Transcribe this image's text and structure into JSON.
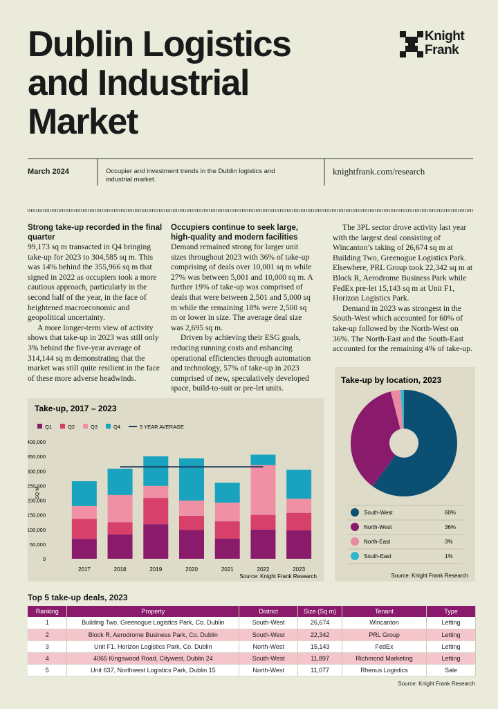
{
  "header": {
    "title_lines": [
      "Dublin Logistics",
      "and Industrial",
      "Market"
    ],
    "logo": [
      "Knight",
      "Frank"
    ],
    "date": "March 2024",
    "description": "Occupier and investment trends in the Dublin logistics and industrial market.",
    "url": "knightfrank.com/research"
  },
  "columns": [
    {
      "heading": "Strong take-up recorded in the final quarter",
      "paragraphs": [
        "99,173 sq m transacted in Q4 bringing take-up for 2023 to 304,585 sq m. This was 14% behind the 355,966 sq m that signed in 2022 as occupiers took a more cautious approach, particularly in the second half of the year, in the face of heightened macroeconomic and geopolitical uncertainty.",
        "A more longer-term view of activity shows that take-up in 2023 was still only 3% behind the five-year average of 314,144 sq m demonstrating that the market was still quite resilient in the face of these more adverse headwinds."
      ]
    },
    {
      "heading": "Occupiers continue to seek large, high-quality and modern facilities",
      "paragraphs": [
        "Demand remained strong for larger unit sizes throughout 2023 with 36% of take-up comprising of deals over 10,001 sq m while 27% was between 5,001 and 10,000 sq m. A further 19% of take-up was comprised of deals that were between 2,501 and 5,000 sq m while the remaining 18% were 2,500 sq m or lower in size. The average deal size was 2,695 sq m.",
        "Driven by achieving their ESG goals, reducing running costs and enhancing operational efficiencies through automation and technology, 57% of take-up in 2023 comprised of new, speculatively developed space, build-to-suit or pre-let units."
      ]
    },
    {
      "paragraphs": [
        "The 3PL sector drove activity last year with the largest deal consisting of Wincanton’s taking of 26,674 sq m at Building Two, Greenogue Logistics Park. Elsewhere, PRL Group took 22,342 sq m at Block R, Aerodrome Business Park while FedEx pre-let 15,143 sq m at Unit F1, Horizon Logistics Park.",
        "Demand in 2023 was strongest in the South-West which accounted for 60% of take-up followed by the North-West on 36%. The North-East and the South-East accounted for the remaining 4% of take-up."
      ]
    }
  ],
  "chart_data": [
    {
      "type": "stacked_bar",
      "title": "Take-up, 2017 – 2023",
      "y_label": "SQ M",
      "source": "Source: Knight Frank Research",
      "categories": [
        "2017",
        "2018",
        "2019",
        "2020",
        "2021",
        "2022",
        "2023"
      ],
      "series": [
        {
          "name": "Q1",
          "color": "#8a1a6a",
          "values": [
            68000,
            83000,
            118000,
            99000,
            69000,
            100000,
            97000
          ]
        },
        {
          "name": "Q2",
          "color": "#d8406c",
          "values": [
            68000,
            42000,
            90000,
            48000,
            59000,
            50000,
            60000
          ]
        },
        {
          "name": "Q3",
          "color": "#f090a4",
          "values": [
            44000,
            93000,
            41000,
            52000,
            64000,
            170000,
            48000
          ]
        },
        {
          "name": "Q4",
          "color": "#1aa3bf",
          "values": [
            85000,
            90000,
            101000,
            144000,
            68000,
            36000,
            99000
          ]
        },
        {
          "name": "5 YEAR AVERAGE",
          "type": "line",
          "color": "#1d3b5c",
          "values": [
            null,
            314144,
            314144,
            314144,
            314144,
            314144,
            null
          ]
        }
      ],
      "ylim": [
        0,
        400000
      ],
      "yticks": [
        0,
        {
          "value": 50000,
          "label": "50,000"
        },
        {
          "value": 100000,
          "label": "100,000"
        },
        {
          "value": 150000,
          "label": "150,000"
        },
        {
          "value": 200000,
          "label": "200,000"
        },
        {
          "value": 250000,
          "label": "250,000"
        },
        {
          "value": 300000,
          "label": "300,000"
        },
        {
          "value": 350000,
          "label": "350,000"
        },
        {
          "value": 400000,
          "label": "400,000"
        }
      ]
    },
    {
      "type": "pie",
      "title": "Take-up by location, 2023",
      "source": "Source: Knight Frank Research",
      "categories": [
        "South-West",
        "North-West",
        "North-East",
        "South-East"
      ],
      "values": [
        60,
        36,
        3,
        1
      ],
      "value_labels": [
        "60%",
        "36%",
        "3%",
        "1%"
      ],
      "colors": [
        "#0b4f73",
        "#8a1a6b",
        "#e98aa1",
        "#33b6ca"
      ]
    }
  ],
  "table": {
    "title": "Top 5 take-up deals, 2023",
    "columns": [
      "Ranking",
      "Property",
      "District",
      "Size (Sq m)",
      "Tenant",
      "Type"
    ],
    "rows": [
      [
        "1",
        "Building Two, Greenogue Logistics Park, Co. Dublin",
        "South-West",
        "26,674",
        "Wincanton",
        "Letting"
      ],
      [
        "2",
        "Block R, Aerodrome Business Park, Co. Dublin",
        "South-West",
        "22,342",
        "PRL Group",
        "Letting"
      ],
      [
        "3",
        "Unit F1, Horizon Logistics Park, Co. Dublin",
        "North-West",
        "15,143",
        "FedEx",
        "Letting"
      ],
      [
        "4",
        "4065 Kingswood Road, Citywest, Dublin 24",
        "South-West",
        "11,897",
        "Richmond Marketing",
        "Letting"
      ],
      [
        "5",
        "Unit 637, Northwest Logistics Park, Dublin 15",
        "North-West",
        "11,077",
        "Rhenus Logistics",
        "Sale"
      ]
    ],
    "source": "Source: Knight Frank Research"
  }
}
